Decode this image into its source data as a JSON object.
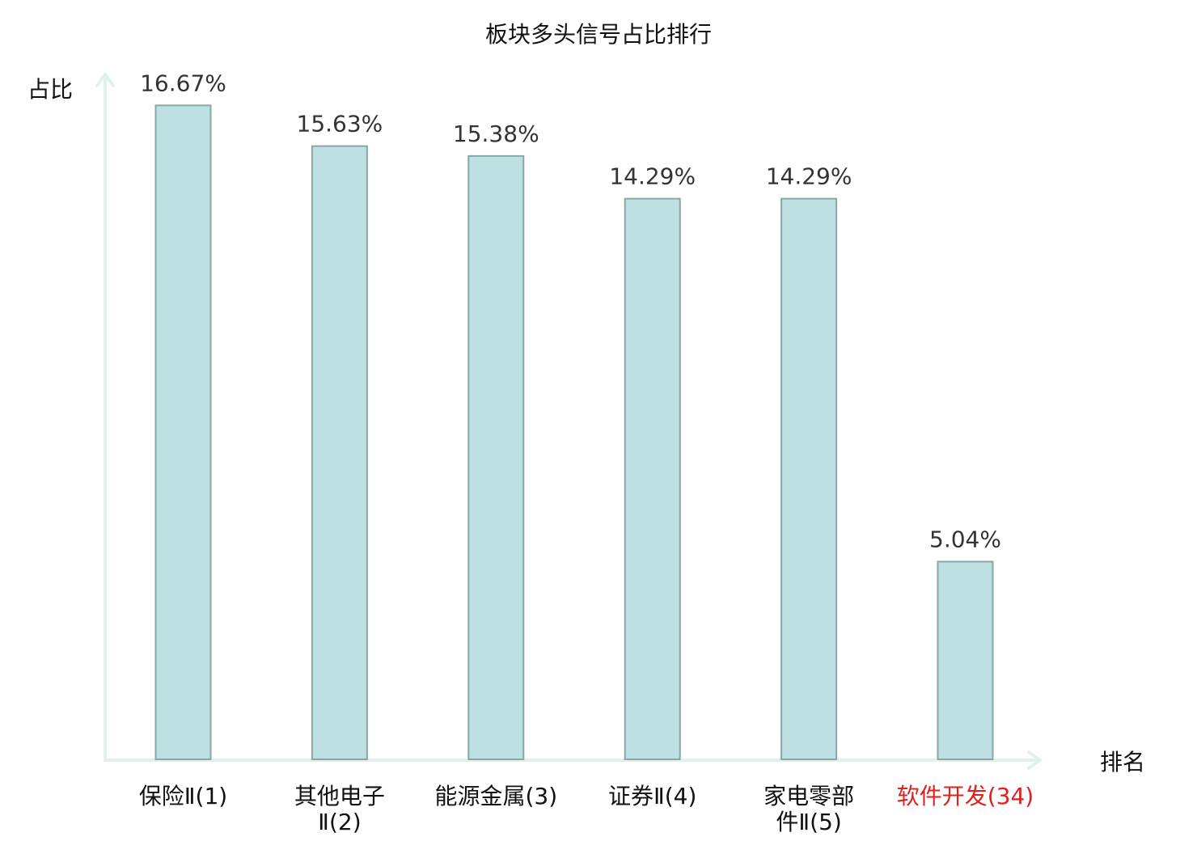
{
  "colors": {
    "bar_fill": "#bde0e3",
    "bar_stroke": "#8aa6a8",
    "axis": "#e0f0ee",
    "text": "#111111",
    "value_text": "#333333",
    "highlight": "#e0201b"
  },
  "chart_data": {
    "type": "bar",
    "title": "板块多头信号占比排行",
    "xlabel": "排名",
    "ylabel": "占比",
    "ylim": [
      0,
      17.5
    ],
    "grid": false,
    "legend": "none",
    "categories": [
      {
        "name": "保险Ⅱ",
        "rank": "(1)",
        "lines": [
          "保险Ⅱ(1)"
        ],
        "highlight": false
      },
      {
        "name": "其他电子Ⅱ",
        "rank": "(2)",
        "lines": [
          "其他电子",
          "Ⅱ(2)"
        ],
        "highlight": false
      },
      {
        "name": "能源金属",
        "rank": "(3)",
        "lines": [
          "能源金属(3)"
        ],
        "highlight": false
      },
      {
        "name": "证券Ⅱ",
        "rank": "(4)",
        "lines": [
          "证券Ⅱ(4)"
        ],
        "highlight": false
      },
      {
        "name": "家电零部件Ⅱ",
        "rank": "(5)",
        "lines": [
          "家电零部",
          "件Ⅱ(5)"
        ],
        "highlight": false
      },
      {
        "name": "软件开发",
        "rank": "(34)",
        "lines": [
          "软件开发(34)"
        ],
        "highlight": true
      }
    ],
    "values": [
      16.67,
      15.63,
      15.38,
      14.29,
      14.29,
      5.04
    ],
    "value_labels": [
      "16.67%",
      "15.63%",
      "15.38%",
      "14.29%",
      "14.29%",
      "5.04%"
    ]
  }
}
